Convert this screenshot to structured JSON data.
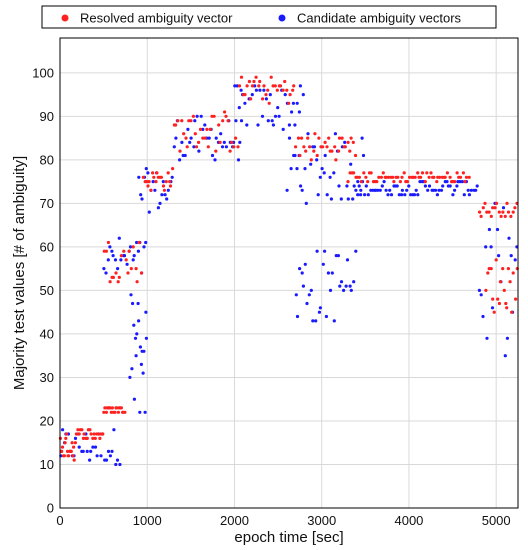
{
  "chart_data": {
    "type": "scatter",
    "xlabel": "epoch time [sec]",
    "ylabel": "Majority test values [# of ambiguity]",
    "xlim": [
      0,
      5250
    ],
    "ylim": [
      0,
      108
    ],
    "x_ticks": [
      "0",
      "1000",
      "2000",
      "3000",
      "4000",
      "5000"
    ],
    "y_ticks": [
      "0",
      "10",
      "20",
      "30",
      "40",
      "50",
      "60",
      "70",
      "80",
      "90",
      "100"
    ],
    "grid": true,
    "legend_position": "top",
    "series": [
      {
        "name": "Resolved ambiguity vector",
        "color": "#ff2020",
        "bands": [
          {
            "x": [
              0,
              180
            ],
            "y": [
              11,
              17
            ]
          },
          {
            "x": [
              180,
              500
            ],
            "y": [
              16,
              18
            ]
          },
          {
            "x": [
              500,
              750
            ],
            "y": [
              22,
              23
            ]
          },
          {
            "x": [
              500,
              950
            ],
            "y": [
              52,
              62
            ]
          },
          {
            "x": [
              950,
              1300
            ],
            "y": [
              73,
              78
            ]
          },
          {
            "x": [
              1300,
              2050
            ],
            "y": [
              82,
              91
            ]
          },
          {
            "x": [
              2050,
              2700
            ],
            "y": [
              93,
              99
            ]
          },
          {
            "x": [
              2700,
              3400
            ],
            "y": [
              80,
              86
            ]
          },
          {
            "x": [
              3300,
              4700
            ],
            "y": [
              75,
              77
            ]
          },
          {
            "x": [
              4800,
              5250
            ],
            "y": [
              67,
              70
            ]
          },
          {
            "x": [
              4880,
              5250
            ],
            "y": [
              45,
              58
            ]
          }
        ]
      },
      {
        "name": "Candidate ambiguity vectors",
        "color": "#1a1aff",
        "bands": [
          {
            "x": [
              0,
              700
            ],
            "y": [
              10,
              18
            ]
          },
          {
            "x": [
              500,
              1000
            ],
            "y": [
              52,
              62
            ]
          },
          {
            "x": [
              900,
              1300
            ],
            "y": [
              68,
              78
            ]
          },
          {
            "x": [
              1300,
              2100
            ],
            "y": [
              80,
              90
            ]
          },
          {
            "x": [
              2000,
              2800
            ],
            "y": [
              87,
              97
            ]
          },
          {
            "x": [
              2600,
              3500
            ],
            "y": [
              70,
              86
            ]
          },
          {
            "x": [
              2700,
              3400
            ],
            "y": [
              42,
              60
            ]
          },
          {
            "x": [
              3400,
              4800
            ],
            "y": [
              72,
              75
            ]
          },
          {
            "x": [
              4800,
              5250
            ],
            "y": [
              35,
              70
            ]
          },
          {
            "x": [
              800,
              1000
            ],
            "y": [
              20,
              50
            ]
          }
        ]
      }
    ]
  }
}
